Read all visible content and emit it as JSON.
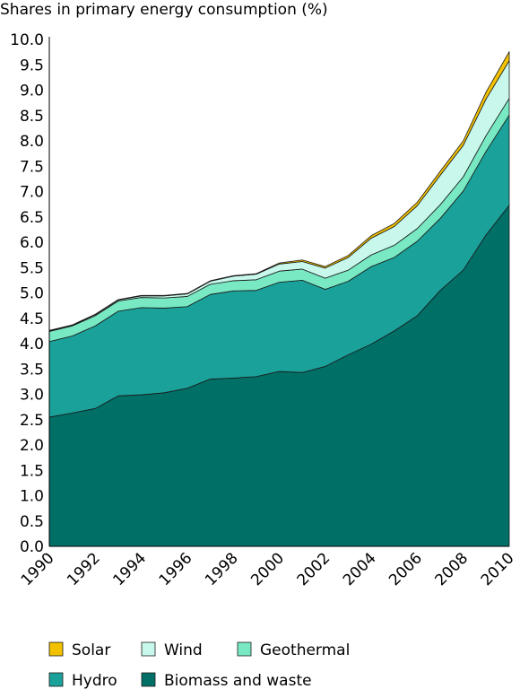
{
  "chart_data": {
    "type": "area",
    "stacked": true,
    "title": "Shares in primary energy consumption (%)",
    "xlabel": "",
    "ylabel": "",
    "ylim": [
      0,
      10
    ],
    "y_ticks": [
      "0.0",
      "0.5",
      "1.0",
      "1.5",
      "2.0",
      "2.5",
      "3.0",
      "3.5",
      "4.0",
      "4.5",
      "5.0",
      "5.5",
      "6.0",
      "6.5",
      "7.0",
      "7.5",
      "8.0",
      "8.5",
      "9.0",
      "9.5",
      "10.0"
    ],
    "x_ticks": [
      "1990",
      "1992",
      "1994",
      "1996",
      "1998",
      "2000",
      "2002",
      "2004",
      "2006",
      "2008",
      "2010"
    ],
    "x": [
      1990,
      1991,
      1992,
      1993,
      1994,
      1995,
      1996,
      1997,
      1998,
      1999,
      2000,
      2001,
      2002,
      2003,
      2004,
      2005,
      2006,
      2007,
      2008,
      2009,
      2010
    ],
    "series": [
      {
        "name": "Biomass and waste",
        "color": "#006f66",
        "values": [
          2.55,
          2.63,
          2.72,
          2.97,
          2.99,
          3.03,
          3.12,
          3.3,
          3.32,
          3.35,
          3.45,
          3.43,
          3.55,
          3.78,
          3.99,
          4.25,
          4.55,
          5.05,
          5.45,
          6.15,
          6.73
        ]
      },
      {
        "name": "Hydro",
        "color": "#1aa19a",
        "values": [
          1.49,
          1.52,
          1.63,
          1.67,
          1.72,
          1.67,
          1.61,
          1.67,
          1.72,
          1.7,
          1.76,
          1.82,
          1.52,
          1.45,
          1.53,
          1.45,
          1.47,
          1.42,
          1.56,
          1.65,
          1.78
        ]
      },
      {
        "name": "Geothermal",
        "color": "#78e9c3",
        "values": [
          0.2,
          0.2,
          0.2,
          0.2,
          0.2,
          0.2,
          0.2,
          0.2,
          0.2,
          0.21,
          0.22,
          0.22,
          0.22,
          0.22,
          0.23,
          0.24,
          0.25,
          0.27,
          0.28,
          0.31,
          0.33
        ]
      },
      {
        "name": "Wind",
        "color": "#c8f8ec",
        "values": [
          0.01,
          0.01,
          0.02,
          0.02,
          0.03,
          0.04,
          0.05,
          0.06,
          0.09,
          0.11,
          0.14,
          0.15,
          0.2,
          0.25,
          0.33,
          0.37,
          0.45,
          0.58,
          0.62,
          0.72,
          0.74
        ]
      },
      {
        "name": "Solar",
        "color": "#f2c100",
        "values": [
          0.01,
          0.01,
          0.01,
          0.01,
          0.01,
          0.01,
          0.01,
          0.01,
          0.01,
          0.01,
          0.02,
          0.03,
          0.03,
          0.04,
          0.05,
          0.06,
          0.07,
          0.08,
          0.09,
          0.14,
          0.18
        ]
      }
    ],
    "legend": {
      "placement": "bottom",
      "rows": [
        [
          "Solar",
          "Wind",
          "Geothermal"
        ],
        [
          "Hydro",
          "Biomass and waste"
        ]
      ]
    },
    "grid": false
  }
}
